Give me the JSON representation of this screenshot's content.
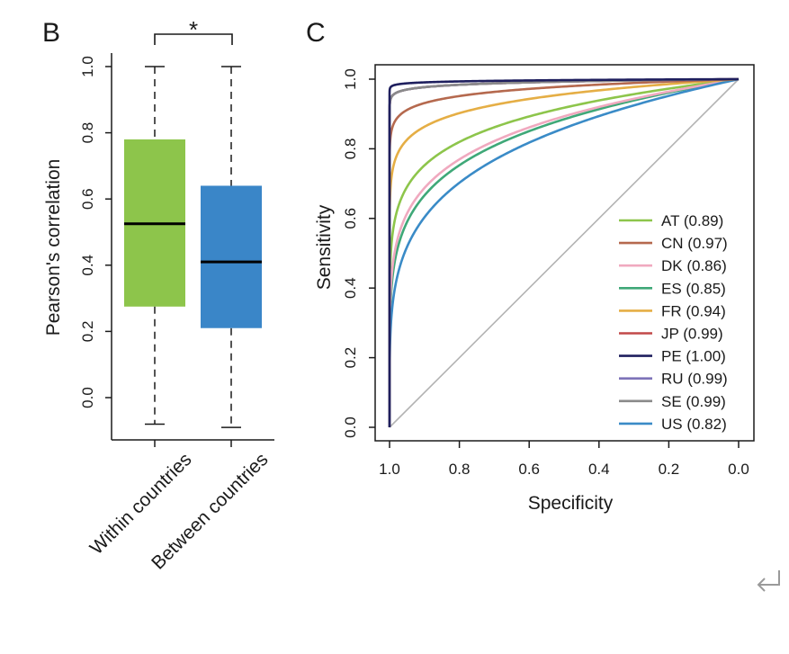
{
  "panel_b": {
    "letter": "B",
    "significance_marker": "*"
  },
  "panel_c": {
    "letter": "C"
  },
  "return_icon": "return-arrow-icon",
  "chart_data": [
    {
      "type": "box",
      "ylabel": "Pearson's correlation",
      "xlabel": "",
      "ylim": [
        -0.13,
        1.04
      ],
      "yticks": [
        "0.0",
        "0.2",
        "0.4",
        "0.6",
        "0.8",
        "1.0"
      ],
      "categories": [
        "Within countries",
        "Between countries"
      ],
      "boxes": [
        {
          "name": "Within countries",
          "color": "#8dc54b",
          "min": -0.08,
          "q1": 0.275,
          "median": 0.525,
          "q3": 0.78,
          "max": 1.0
        },
        {
          "name": "Between countries",
          "color": "#3a86c8",
          "min": -0.09,
          "q1": 0.21,
          "median": 0.41,
          "q3": 0.64,
          "max": 1.0
        }
      ],
      "annotation": "*",
      "grid": false
    },
    {
      "type": "line",
      "xlabel": "Specificity",
      "ylabel": "Sensitivity",
      "xlim": [
        1.0,
        0.0
      ],
      "ylim": [
        0.0,
        1.0
      ],
      "xticks": [
        "1.0",
        "0.8",
        "0.6",
        "0.4",
        "0.2",
        "0.0"
      ],
      "yticks": [
        "0.0",
        "0.2",
        "0.4",
        "0.6",
        "0.8",
        "1.0"
      ],
      "legend_position": "bottom-right",
      "grid": false,
      "reference_line": {
        "from": [
          1.0,
          0.0
        ],
        "to": [
          0.0,
          1.0
        ],
        "color": "#b3b3b3"
      },
      "series": [
        {
          "name": "AT (0.89)",
          "color": "#8dc54b",
          "auc": 0.89
        },
        {
          "name": "CN (0.97)",
          "color": "#b5694e",
          "auc": 0.97
        },
        {
          "name": "DK (0.86)",
          "color": "#f0a9bf",
          "auc": 0.86
        },
        {
          "name": "ES (0.85)",
          "color": "#3fa878",
          "auc": 0.85
        },
        {
          "name": "FR (0.94)",
          "color": "#e5ae45",
          "auc": 0.94
        },
        {
          "name": "JP (0.99)",
          "color": "#c24949",
          "auc": 0.99
        },
        {
          "name": "PE (1.00)",
          "color": "#1f1f5e",
          "auc": 1.0
        },
        {
          "name": "RU (0.99)",
          "color": "#7d73b8",
          "auc": 0.99
        },
        {
          "name": "SE (0.99)",
          "color": "#8a8a8a",
          "auc": 0.99
        },
        {
          "name": "US (0.82)",
          "color": "#3a8bc7",
          "auc": 0.82
        }
      ]
    }
  ]
}
